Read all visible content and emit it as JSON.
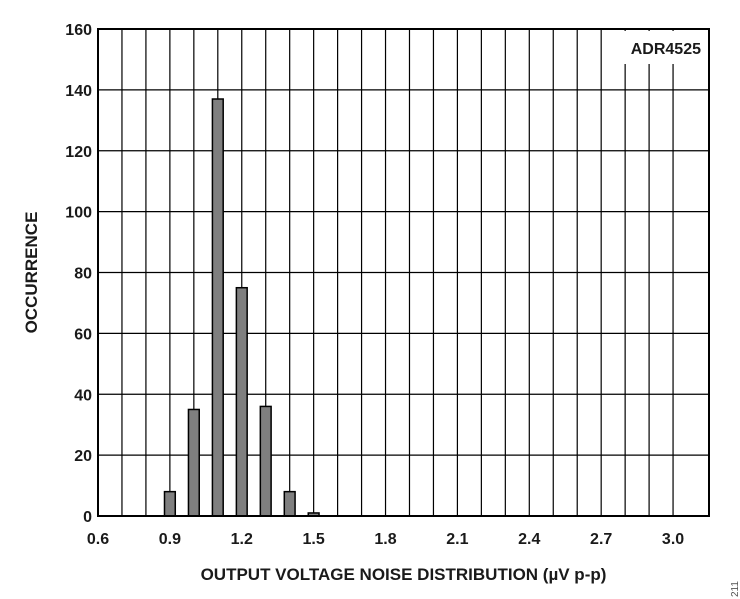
{
  "chart_data": {
    "type": "bar",
    "xlabel": "OUTPUT VOLTAGE NOISE DISTRIBUTION (µV p-p)",
    "ylabel": "OCCURRENCE",
    "annotation": "ADR4525",
    "figure_id": "211",
    "xlim": [
      0.6,
      3.15
    ],
    "ylim": [
      0,
      160
    ],
    "x_ticks": [
      0.6,
      0.9,
      1.2,
      1.5,
      1.8,
      2.1,
      2.4,
      2.7,
      3.0
    ],
    "x_tick_labels": [
      "0.6",
      "0.9",
      "1.2",
      "1.5",
      "1.8",
      "2.1",
      "2.4",
      "2.7",
      "3.0"
    ],
    "y_ticks": [
      0,
      20,
      40,
      60,
      80,
      100,
      120,
      140,
      160
    ],
    "y_tick_labels": [
      "0",
      "20",
      "40",
      "60",
      "80",
      "100",
      "120",
      "140",
      "160"
    ],
    "grid": true,
    "grid_x_step": 0.1,
    "x": [
      0.9,
      1.0,
      1.1,
      1.2,
      1.3,
      1.4,
      1.5
    ],
    "values": [
      8,
      35,
      137,
      75,
      36,
      8,
      1
    ],
    "bar_color": "#7f7f7f",
    "edge_color": "#000000"
  }
}
